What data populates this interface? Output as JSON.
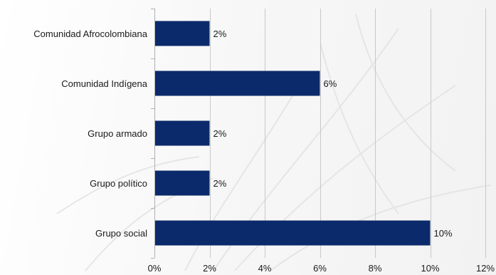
{
  "chart_data": {
    "type": "bar",
    "orientation": "horizontal",
    "categories": [
      "Comunidad Afrocolombiana",
      "Comunidad Indígena",
      "Grupo armado",
      "Grupo político",
      "Grupo social"
    ],
    "values": [
      2,
      6,
      2,
      2,
      10
    ],
    "data_labels": [
      "2%",
      "6%",
      "2%",
      "2%",
      "10%"
    ],
    "xlim": [
      0,
      12
    ],
    "x_ticks": [
      0,
      2,
      4,
      6,
      8,
      10,
      12
    ],
    "x_tick_labels": [
      "0%",
      "2%",
      "4%",
      "6%",
      "8%",
      "10%",
      "12%"
    ],
    "title": "",
    "xlabel": "",
    "ylabel": "",
    "grid": "vertical",
    "legend": "none",
    "bar_color": "#0b2a6b"
  }
}
